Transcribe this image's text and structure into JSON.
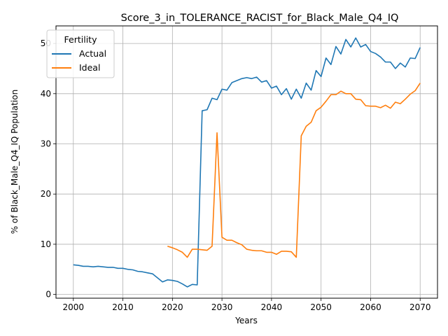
{
  "chart_data": {
    "type": "line",
    "title": "Score_3_in_TOLERANCE_RACIST_for_Black_Male_Q4_IQ",
    "xlabel": "Years",
    "ylabel": "% of Black_Male_Q4_IQ Population",
    "xlim": [
      1996.5,
      2073.5
    ],
    "ylim": [
      -0.75,
      53.5
    ],
    "xticks": [
      2000,
      2010,
      2020,
      2030,
      2040,
      2050,
      2060,
      2070
    ],
    "yticks": [
      0,
      10,
      20,
      30,
      40,
      50
    ],
    "grid": true,
    "legend": {
      "title": "Fertility",
      "placement": "top-left"
    },
    "series": [
      {
        "name": "Actual",
        "color": "#1f77b4",
        "x": [
          2000,
          2001,
          2002,
          2003,
          2004,
          2005,
          2006,
          2007,
          2008,
          2009,
          2010,
          2011,
          2012,
          2013,
          2014,
          2015,
          2016,
          2017,
          2018,
          2019,
          2020,
          2021,
          2022,
          2023,
          2024,
          2025,
          2026,
          2027,
          2028,
          2029,
          2030,
          2031,
          2032,
          2033,
          2034,
          2035,
          2036,
          2037,
          2038,
          2039,
          2040,
          2041,
          2042,
          2043,
          2044,
          2045,
          2046,
          2047,
          2048,
          2049,
          2050,
          2051,
          2052,
          2053,
          2054,
          2055,
          2056,
          2057,
          2058,
          2059,
          2060,
          2061,
          2062,
          2063,
          2064,
          2065,
          2066,
          2067,
          2068,
          2069,
          2070
        ],
        "y": [
          5.9,
          5.8,
          5.6,
          5.6,
          5.5,
          5.6,
          5.5,
          5.4,
          5.4,
          5.2,
          5.2,
          5.0,
          4.9,
          4.6,
          4.5,
          4.3,
          4.1,
          3.3,
          2.5,
          2.9,
          2.8,
          2.6,
          2.1,
          1.5,
          2.0,
          1.9,
          36.6,
          36.8,
          39.1,
          38.8,
          40.9,
          40.7,
          42.2,
          42.6,
          43.0,
          43.2,
          43.0,
          43.3,
          42.3,
          42.6,
          41.1,
          41.5,
          39.8,
          41.0,
          38.9,
          40.9,
          39.1,
          42.1,
          40.7,
          44.6,
          43.4,
          47.1,
          45.8,
          49.4,
          47.9,
          50.8,
          49.3,
          51.1,
          49.3,
          49.8,
          48.4,
          48.0,
          47.3,
          46.3,
          46.3,
          45.0,
          46.1,
          45.3,
          47.1,
          47.0,
          49.2
        ]
      },
      {
        "name": "Ideal",
        "color": "#ff7f0e",
        "x": [
          2019,
          2020,
          2021,
          2022,
          2023,
          2024,
          2025,
          2026,
          2027,
          2028,
          2029,
          2030,
          2031,
          2032,
          2033,
          2034,
          2035,
          2036,
          2037,
          2038,
          2039,
          2040,
          2041,
          2042,
          2043,
          2044,
          2045,
          2046,
          2047,
          2048,
          2049,
          2050,
          2051,
          2052,
          2053,
          2054,
          2055,
          2056,
          2057,
          2058,
          2059,
          2060,
          2061,
          2062,
          2063,
          2064,
          2065,
          2066,
          2067,
          2068,
          2069,
          2070
        ],
        "y": [
          9.6,
          9.3,
          8.9,
          8.4,
          7.4,
          9.0,
          9.0,
          8.9,
          8.8,
          9.6,
          32.2,
          11.4,
          10.8,
          10.8,
          10.3,
          9.9,
          9.0,
          8.8,
          8.7,
          8.7,
          8.4,
          8.4,
          8.0,
          8.6,
          8.6,
          8.5,
          7.4,
          31.6,
          33.5,
          34.3,
          36.6,
          37.3,
          38.5,
          39.8,
          39.8,
          40.5,
          40.0,
          40.0,
          38.9,
          38.8,
          37.6,
          37.5,
          37.5,
          37.2,
          37.7,
          37.1,
          38.3,
          38.0,
          38.9,
          39.9,
          40.6,
          42.1
        ]
      }
    ]
  }
}
